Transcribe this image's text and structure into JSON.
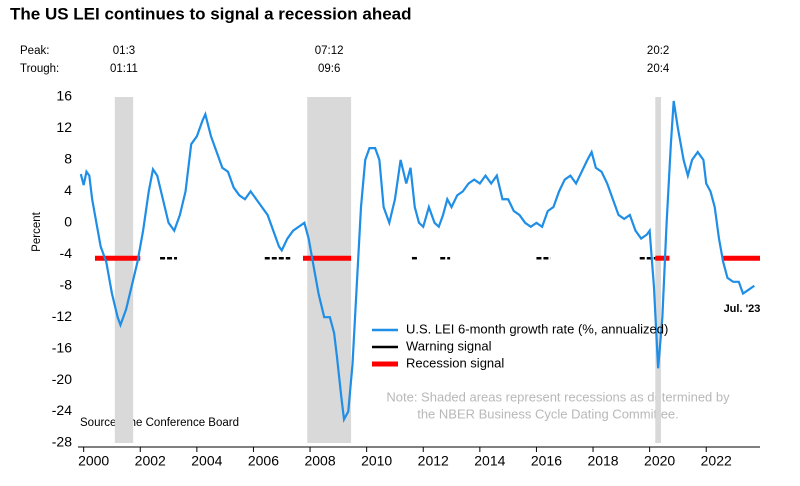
{
  "chart_data": {
    "type": "line",
    "title": "The US LEI continues to signal a recession ahead",
    "peak_label": "Peak:",
    "trough_label": "Trough:",
    "y_label": "Percent",
    "source": "Source: The Conference Board",
    "note": [
      "Note: Shaded areas represent recessions as determined by",
      "the NBER Business Cycle Dating Committee."
    ],
    "annotation": "Jul. '23",
    "recessions": [
      {
        "peak": "01:3",
        "trough": "01:11",
        "range": [
          2001.1,
          2001.75
        ]
      },
      {
        "peak": "07:12",
        "trough": "09:6",
        "range": [
          2007.9,
          2009.45
        ]
      },
      {
        "peak": "20:2",
        "trough": "20:4",
        "range": [
          2020.2,
          2020.4
        ]
      }
    ],
    "recession_color": "#d9d9d9",
    "x": [
      1999.9,
      2000.0,
      2000.1,
      2000.2,
      2000.3,
      2000.45,
      2000.6,
      2000.8,
      2001.0,
      2001.2,
      2001.3,
      2001.5,
      2001.7,
      2001.9,
      2002.1,
      2002.3,
      2002.45,
      2002.6,
      2002.8,
      2003.0,
      2003.2,
      2003.4,
      2003.6,
      2003.8,
      2004.0,
      2004.2,
      2004.3,
      2004.5,
      2004.7,
      2004.9,
      2005.1,
      2005.3,
      2005.5,
      2005.7,
      2005.9,
      2006.1,
      2006.3,
      2006.5,
      2006.7,
      2006.9,
      2007.0,
      2007.2,
      2007.4,
      2007.6,
      2007.8,
      2007.95,
      2008.1,
      2008.3,
      2008.5,
      2008.7,
      2008.85,
      2008.95,
      2009.1,
      2009.2,
      2009.35,
      2009.5,
      2009.65,
      2009.8,
      2009.95,
      2010.1,
      2010.3,
      2010.45,
      2010.6,
      2010.8,
      2011.0,
      2011.2,
      2011.4,
      2011.55,
      2011.7,
      2011.85,
      2012.0,
      2012.2,
      2012.4,
      2012.55,
      2012.7,
      2012.85,
      2013.0,
      2013.2,
      2013.4,
      2013.6,
      2013.8,
      2014.0,
      2014.2,
      2014.4,
      2014.6,
      2014.8,
      2015.0,
      2015.2,
      2015.4,
      2015.6,
      2015.8,
      2016.0,
      2016.2,
      2016.4,
      2016.6,
      2016.8,
      2017.0,
      2017.2,
      2017.4,
      2017.6,
      2017.8,
      2017.95,
      2018.1,
      2018.3,
      2018.5,
      2018.7,
      2018.9,
      2019.1,
      2019.3,
      2019.5,
      2019.7,
      2019.9,
      2020.0,
      2020.15,
      2020.3,
      2020.45,
      2020.6,
      2020.75,
      2020.85,
      2021.0,
      2021.2,
      2021.35,
      2021.5,
      2021.7,
      2021.9,
      2022.0,
      2022.15,
      2022.3,
      2022.45,
      2022.6,
      2022.75,
      2022.95,
      2023.15,
      2023.3,
      2023.5,
      2023.7
    ],
    "series": [
      {
        "name": "U.S. LEI 6-month growth rate (%, annualized)",
        "color": "#1f8ee6",
        "values": [
          6.2,
          4.8,
          6.5,
          6,
          3,
          0,
          -3,
          -5,
          -9,
          -12,
          -13,
          -11,
          -8,
          -5,
          -1,
          4,
          6.8,
          6,
          3,
          0,
          -1,
          1,
          4,
          10,
          11,
          13,
          13.8,
          11,
          9,
          7,
          6.5,
          4.5,
          3.5,
          3,
          4,
          3,
          2,
          1,
          -1,
          -3,
          -3.5,
          -2,
          -1,
          -0.5,
          0,
          -2,
          -5,
          -9,
          -12,
          -12,
          -14,
          -17,
          -22,
          -25,
          -24,
          -18,
          -8,
          2,
          8,
          9.5,
          9.5,
          8,
          2,
          0,
          3,
          8,
          5,
          7,
          2,
          0,
          -0.5,
          2,
          0,
          -0.5,
          1,
          3,
          2,
          3.5,
          4,
          5,
          5.5,
          5,
          6,
          5,
          6,
          3,
          3,
          1.5,
          1,
          0,
          -0.5,
          0,
          -0.5,
          1.5,
          2,
          4,
          5.5,
          6,
          5,
          6.5,
          8,
          9,
          7,
          6.5,
          5,
          3,
          1,
          0.5,
          1,
          -1,
          -2,
          -1.5,
          -1,
          -8,
          -18.5,
          -12,
          0,
          10,
          15.5,
          12,
          8,
          6,
          8,
          9,
          8,
          5,
          4,
          2,
          -2,
          -5,
          -7,
          -7.5,
          -7.5,
          -9,
          -8.5,
          -8
        ]
      },
      {
        "name": "Warning signal",
        "color": "#000000",
        "periods": [
          [
            2002.7,
            2003.3
          ],
          [
            2006.4,
            2007.3
          ],
          [
            2011.6,
            2011.8
          ],
          [
            2012.6,
            2012.95
          ],
          [
            2016.0,
            2016.5
          ],
          [
            2019.65,
            2020.2
          ]
        ]
      },
      {
        "name": "Recession signal",
        "color": "#ff0000",
        "periods": [
          [
            2000.4,
            2002.0
          ],
          [
            2007.75,
            2009.45
          ],
          [
            2020.2,
            2020.7
          ],
          [
            2022.55,
            2023.9
          ]
        ]
      }
    ],
    "signal_level": -4.5,
    "xlim": [
      1999.8,
      2023.9
    ],
    "xticks": [
      2000,
      2002,
      2004,
      2006,
      2008,
      2010,
      2012,
      2014,
      2016,
      2018,
      2020,
      2022
    ],
    "ylim": [
      -28,
      16
    ],
    "yticks": [
      16,
      12,
      8,
      4,
      0,
      -4,
      -8,
      -12,
      -16,
      -20,
      -24,
      -28
    ],
    "grid": false
  }
}
